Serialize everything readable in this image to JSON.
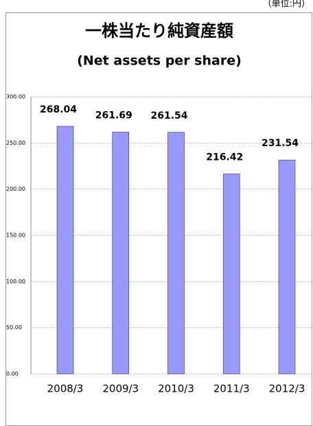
{
  "chart_data": {
    "type": "bar",
    "unit": "（単位:円）",
    "title": "一株当たり純資産額",
    "subtitle": "(Net assets per share)",
    "categories": [
      "2008/3",
      "2009/3",
      "2010/3",
      "2011/3",
      "2012/3"
    ],
    "values": [
      268.04,
      261.69,
      261.54,
      216.42,
      231.54
    ],
    "color": "#9999ff",
    "ylim": [
      0,
      300
    ],
    "yticks": [
      {
        "value": 0,
        "label": "0.00"
      },
      {
        "value": 50,
        "label": "50.00"
      },
      {
        "value": 100,
        "label": "100.00"
      },
      {
        "value": 150,
        "label": "150.00"
      },
      {
        "value": 200,
        "label": "200.00"
      },
      {
        "value": 250,
        "label": "250.00"
      },
      {
        "value": 300,
        "label": "300.00"
      }
    ],
    "grid": true
  }
}
